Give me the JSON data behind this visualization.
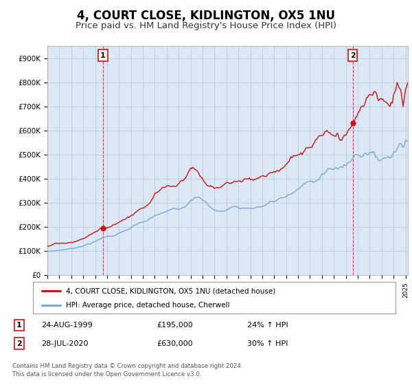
{
  "title": "4, COURT CLOSE, KIDLINGTON, OX5 1NU",
  "subtitle": "Price paid vs. HM Land Registry's House Price Index (HPI)",
  "title_fontsize": 12,
  "subtitle_fontsize": 9.5,
  "ylabel_ticks": [
    "£0",
    "£100K",
    "£200K",
    "£300K",
    "£400K",
    "£500K",
    "£600K",
    "£700K",
    "£800K",
    "£900K"
  ],
  "ylim": [
    0,
    950000
  ],
  "xlim_start": 1995.0,
  "xlim_end": 2025.2,
  "sale1_date": 1999.65,
  "sale1_price": 195000,
  "sale2_date": 2020.57,
  "sale2_price": 630000,
  "hpi_color": "#7aaad0",
  "price_color": "#cc1111",
  "annotation_box_color": "#cc1111",
  "plot_bg_color": "#dce8f5",
  "background_color": "#ffffff",
  "grid_color": "#b8cfe0",
  "legend_label_price": "4, COURT CLOSE, KIDLINGTON, OX5 1NU (detached house)",
  "legend_label_hpi": "HPI: Average price, detached house, Cherwell",
  "note1_label": "1",
  "note1_date": "24-AUG-1999",
  "note1_price": "£195,000",
  "note1_hpi": "24% ↑ HPI",
  "note2_label": "2",
  "note2_date": "28-JUL-2020",
  "note2_price": "£630,000",
  "note2_hpi": "30% ↑ HPI",
  "footer": "Contains HM Land Registry data © Crown copyright and database right 2024.\nThis data is licensed under the Open Government Licence v3.0."
}
